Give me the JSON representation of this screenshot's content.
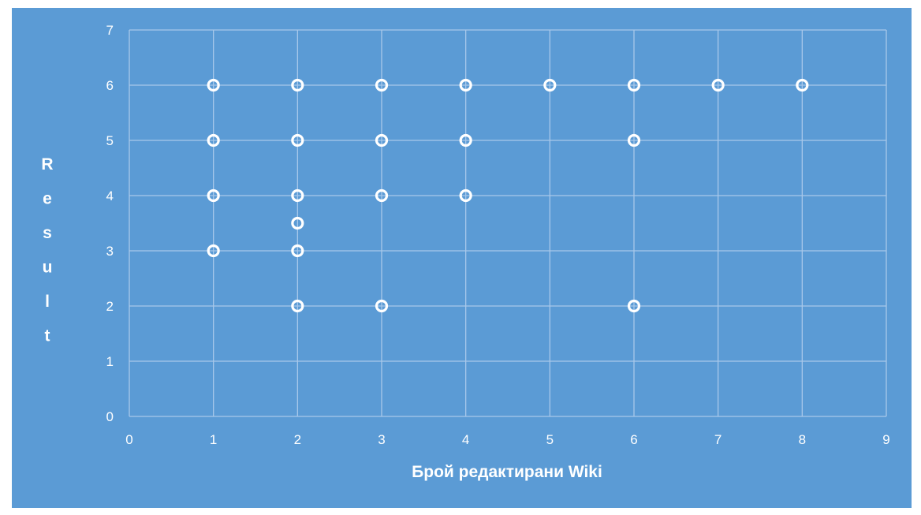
{
  "chart_data": {
    "type": "scatter",
    "title": "",
    "xlabel": "Брой редактирани Wiki",
    "ylabel": "Result",
    "xlim": [
      0,
      9
    ],
    "ylim": [
      0,
      7
    ],
    "x_ticks": [
      0,
      1,
      2,
      3,
      4,
      5,
      6,
      7,
      8,
      9
    ],
    "y_ticks": [
      0,
      1,
      2,
      3,
      4,
      5,
      6,
      7
    ],
    "grid": true,
    "legend": "none",
    "colors": {
      "background": "#5b9bd5",
      "gridline": "#a8c8ea",
      "marker_stroke": "#ffffff",
      "text": "#ffffff"
    },
    "series": [
      {
        "points": [
          {
            "x": 1,
            "y": 6
          },
          {
            "x": 2,
            "y": 6
          },
          {
            "x": 3,
            "y": 6
          },
          {
            "x": 4,
            "y": 6
          },
          {
            "x": 5,
            "y": 6
          },
          {
            "x": 6,
            "y": 6
          },
          {
            "x": 7,
            "y": 6
          },
          {
            "x": 8,
            "y": 6
          },
          {
            "x": 1,
            "y": 5
          },
          {
            "x": 2,
            "y": 5
          },
          {
            "x": 3,
            "y": 5
          },
          {
            "x": 4,
            "y": 5
          },
          {
            "x": 6,
            "y": 5
          },
          {
            "x": 1,
            "y": 4
          },
          {
            "x": 2,
            "y": 4
          },
          {
            "x": 3,
            "y": 4
          },
          {
            "x": 4,
            "y": 4
          },
          {
            "x": 2,
            "y": 3.5
          },
          {
            "x": 1,
            "y": 3
          },
          {
            "x": 2,
            "y": 3
          },
          {
            "x": 2,
            "y": 2
          },
          {
            "x": 3,
            "y": 2
          },
          {
            "x": 6,
            "y": 2
          }
        ]
      }
    ]
  }
}
